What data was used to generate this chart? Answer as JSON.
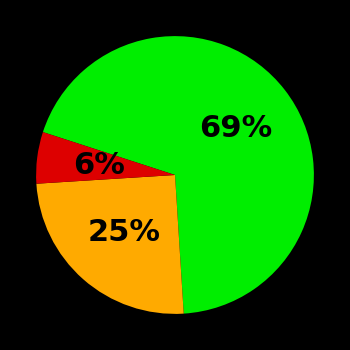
{
  "slices": [
    69,
    25,
    6
  ],
  "colors": [
    "#00ee00",
    "#ffaa00",
    "#dd0000"
  ],
  "labels": [
    "69%",
    "25%",
    "6%"
  ],
  "background_color": "#000000",
  "label_fontsize": 22,
  "label_color": "#000000",
  "startangle": 162,
  "label_radii": [
    0.55,
    0.55,
    0.55
  ]
}
